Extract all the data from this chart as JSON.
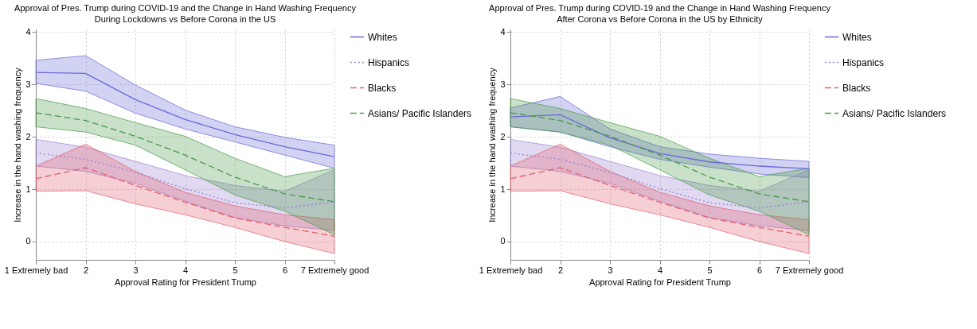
{
  "chart_data": [
    {
      "type": "line",
      "title": "Approval of Pres. Trump during COVID-19 and the Change in Hand Washing Frequency",
      "subtitle": "During Lockdowns vs Before Corona in the US",
      "xlabel": "Approval Rating for President Trump",
      "ylabel": "Increase in the hand washing frequency",
      "categories": [
        "1 Extremely bad",
        "2",
        "3",
        "4",
        "5",
        "6",
        "7 Extremely good"
      ],
      "ylim": [
        -0.35,
        4.05
      ],
      "yticks": [
        0,
        1,
        2,
        3,
        4
      ],
      "grid": true,
      "legend": "right",
      "series": [
        {
          "name": "Whites",
          "color": "#6a6ad8",
          "line_style": "solid",
          "values": [
            3.23,
            3.21,
            2.71,
            2.33,
            2.04,
            1.81,
            1.62
          ],
          "upper": [
            3.46,
            3.55,
            2.99,
            2.51,
            2.19,
            1.99,
            1.84
          ],
          "lower": [
            3.02,
            2.87,
            2.45,
            2.15,
            1.9,
            1.65,
            1.4
          ]
        },
        {
          "name": "Hispanics",
          "color": "#9a80d0",
          "line_style": "dotted",
          "values": [
            1.69,
            1.57,
            1.32,
            1.01,
            0.74,
            0.64,
            0.76
          ],
          "upper": [
            1.95,
            1.8,
            1.53,
            1.26,
            1.07,
            0.96,
            1.37
          ],
          "lower": [
            1.44,
            1.34,
            1.11,
            0.77,
            0.46,
            0.3,
            0.21
          ]
        },
        {
          "name": "Blacks",
          "color": "#e06070",
          "line_style": "dashed",
          "values": [
            1.2,
            1.41,
            1.07,
            0.75,
            0.45,
            0.27,
            0.1
          ],
          "upper": [
            1.44,
            1.86,
            1.34,
            0.94,
            0.68,
            0.51,
            0.42
          ],
          "lower": [
            0.96,
            0.97,
            0.72,
            0.51,
            0.27,
            0.0,
            -0.23
          ]
        },
        {
          "name": "Asians/ Pacific Islanders",
          "color": "#4a9a4a",
          "line_style": "dashed",
          "values": [
            2.46,
            2.31,
            2.01,
            1.65,
            1.23,
            0.91,
            0.76
          ],
          "upper": [
            2.73,
            2.54,
            2.27,
            2.01,
            1.59,
            1.24,
            1.4
          ],
          "lower": [
            2.19,
            2.09,
            1.84,
            1.37,
            0.89,
            0.58,
            0.13
          ]
        }
      ]
    },
    {
      "type": "line",
      "title": "Approval of Pres. Trump during COVID-19 and the Change in Hand Washing Frequency",
      "subtitle": "After Corona vs Before Corona in the US by Ethnicity",
      "xlabel": "Approval Rating for President Trump",
      "ylabel": "Increase in the hand washing frequency",
      "categories": [
        "1 Extremely bad",
        "2",
        "3",
        "4",
        "5",
        "6",
        "7 Extremely good"
      ],
      "ylim": [
        -0.35,
        4.05
      ],
      "yticks": [
        0,
        1,
        2,
        3,
        4
      ],
      "grid": true,
      "legend": "right",
      "series": [
        {
          "name": "Whites",
          "color": "#6a6ad8",
          "line_style": "solid",
          "values": [
            2.38,
            2.42,
            1.98,
            1.68,
            1.52,
            1.44,
            1.39
          ],
          "upper": [
            2.55,
            2.77,
            2.15,
            1.81,
            1.67,
            1.59,
            1.53
          ],
          "lower": [
            2.19,
            2.09,
            1.81,
            1.57,
            1.42,
            1.29,
            1.22
          ]
        },
        {
          "name": "Hispanics",
          "color": "#9a80d0",
          "line_style": "dotted",
          "values": [
            1.69,
            1.57,
            1.32,
            1.01,
            0.74,
            0.64,
            0.76
          ],
          "upper": [
            1.95,
            1.8,
            1.53,
            1.26,
            1.07,
            0.96,
            1.37
          ],
          "lower": [
            1.44,
            1.34,
            1.11,
            0.77,
            0.46,
            0.3,
            0.21
          ]
        },
        {
          "name": "Blacks",
          "color": "#e06070",
          "line_style": "dashed",
          "values": [
            1.2,
            1.41,
            1.07,
            0.75,
            0.45,
            0.27,
            0.1
          ],
          "upper": [
            1.44,
            1.86,
            1.34,
            0.94,
            0.68,
            0.51,
            0.42
          ],
          "lower": [
            0.96,
            0.97,
            0.72,
            0.51,
            0.27,
            0.0,
            -0.23
          ]
        },
        {
          "name": "Asians/ Pacific Islanders",
          "color": "#4a9a4a",
          "line_style": "dashed",
          "values": [
            2.46,
            2.31,
            2.01,
            1.65,
            1.23,
            0.91,
            0.76
          ],
          "upper": [
            2.73,
            2.54,
            2.27,
            2.01,
            1.59,
            1.24,
            1.4
          ],
          "lower": [
            2.19,
            2.09,
            1.84,
            1.37,
            0.89,
            0.58,
            0.13
          ]
        }
      ]
    }
  ]
}
